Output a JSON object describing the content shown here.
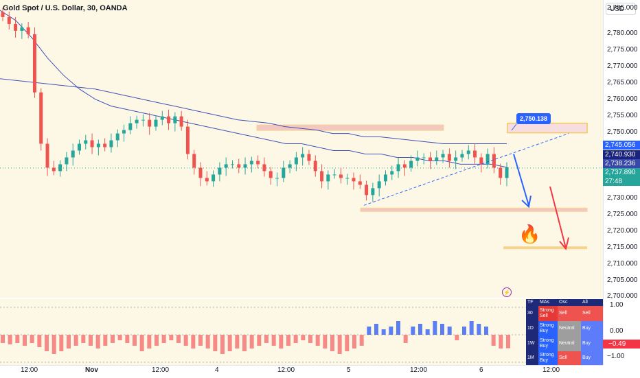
{
  "header": {
    "symbol_title": "Gold Spot / U.S. Dollar, 30, OANDA",
    "currency_button": "USD"
  },
  "price_axis": {
    "labels": [
      "2,785.000",
      "2,780.000",
      "2,775.000",
      "2,770.000",
      "2,765.000",
      "2,760.000",
      "2,755.000",
      "2,750.000",
      "2,745.056",
      "2,740.930",
      "2,738.236",
      "2,737.890",
      "27:48",
      "2,730.000",
      "2,725.000",
      "2,720.000",
      "2,715.000",
      "2,710.000",
      "2,705.000",
      "2,700.000"
    ],
    "tags": [
      {
        "text": "2,745.056",
        "color": "#2962ff"
      },
      {
        "text": "2,740.930",
        "color": "#1a237e"
      },
      {
        "text": "2,738.236",
        "color": "#3949ab"
      },
      {
        "text": "2,737.890",
        "color": "#26a69a"
      },
      {
        "text": "27:48",
        "color": "#26a69a"
      }
    ]
  },
  "time_axis": {
    "labels": [
      "12:00",
      "Nov",
      "12:00",
      "4",
      "12:00",
      "5",
      "12:00",
      "6",
      "12:00"
    ]
  },
  "annotations": {
    "callout_price": "2,750.138"
  },
  "indicator_axis": {
    "labels": [
      "1.00",
      "0.00",
      "−1.00"
    ],
    "current_value": "−0.49"
  },
  "tech_table": {
    "headers": [
      "TF",
      "MAs",
      "Osc",
      "All"
    ],
    "rows": [
      {
        "tf": "30",
        "mas": "Strong Sell",
        "osc": "Sell",
        "all": "Sell"
      },
      {
        "tf": "1D",
        "mas": "Strong Buy",
        "osc": "Neutral",
        "all": "Buy"
      },
      {
        "tf": "1W",
        "mas": "Strong Buy",
        "osc": "Neutral",
        "all": "Buy"
      },
      {
        "tf": "1M",
        "mas": "Strong Buy",
        "osc": "Sell",
        "all": "Buy"
      }
    ]
  },
  "chart_data": {
    "type": "candlestick",
    "symbol": "XAUUSD",
    "interval": "30",
    "ylim": [
      2700,
      2787
    ],
    "close_series": [
      2782,
      2780,
      2778,
      2779,
      2777,
      2760,
      2745,
      2738,
      2737,
      2739,
      2741,
      2743,
      2745,
      2746,
      2744,
      2745,
      2744,
      2746,
      2748,
      2749,
      2751,
      2752,
      2752,
      2750,
      2752,
      2753,
      2751,
      2753,
      2750,
      2742,
      2738,
      2735,
      2734,
      2736,
      2738,
      2739,
      2739,
      2738,
      2739,
      2740,
      2739,
      2737,
      2735,
      2735,
      2738,
      2739,
      2741,
      2742,
      2740,
      2737,
      2734,
      2736,
      2736,
      2735,
      2735,
      2734,
      2733,
      2730,
      2732,
      2734,
      2736,
      2737,
      2739,
      2738,
      2740,
      2741,
      2741,
      2740,
      2741,
      2742,
      2740,
      2741,
      2742,
      2743,
      2741,
      2739,
      2742,
      2738,
      2735,
      2738
    ],
    "series": [
      {
        "name": "MA short",
        "values": [
          2784,
          2781,
          2776,
          2770,
          2765,
          2761,
          2758,
          2756,
          2755,
          2754,
          2753,
          2752,
          2751,
          2750,
          2749,
          2748,
          2747,
          2746,
          2745,
          2745,
          2744,
          2743,
          2743,
          2742,
          2742,
          2741,
          2741,
          2740,
          2740,
          2739,
          2739,
          2739,
          2738
        ]
      },
      {
        "name": "MA long",
        "values": [
          2764,
          2763.5,
          2763,
          2762.5,
          2762,
          2761.5,
          2761,
          2760,
          2759,
          2758,
          2757,
          2756,
          2755,
          2754,
          2753,
          2752,
          2751.5,
          2751,
          2750,
          2749.5,
          2749,
          2748,
          2748,
          2747,
          2747,
          2746.5,
          2746,
          2745.5,
          2745,
          2745,
          2745,
          2745,
          2745
        ]
      }
    ],
    "levels": [
      {
        "price": 2749.5,
        "label": "resistance zone"
      },
      {
        "price": 2725.5,
        "label": "support zone"
      },
      {
        "price": 2714.5,
        "label": "target zone"
      }
    ],
    "trendline": {
      "from": 2727,
      "to": 2748
    },
    "histogram": [
      -0.3,
      -0.35,
      -0.3,
      -0.4,
      -0.3,
      -0.45,
      -0.6,
      -0.7,
      -0.6,
      -0.5,
      -0.4,
      -0.3,
      -0.4,
      -0.5,
      -0.4,
      -0.3,
      -0.2,
      -0.3,
      -0.4,
      -0.6,
      -0.5,
      -0.4,
      -0.3,
      -0.2,
      -0.3,
      -0.4,
      -0.5,
      -0.4,
      -0.5,
      -0.6,
      -0.7,
      -0.6,
      -0.5,
      -0.6,
      -0.5,
      -0.4,
      -0.3,
      -0.4,
      -0.5,
      -0.4,
      -0.3,
      -0.2,
      -0.3,
      -0.4,
      -0.5,
      -0.6,
      -0.7,
      -0.6,
      -0.5,
      -0.4,
      0.3,
      0.4,
      0.2,
      0.3,
      0.5,
      -0.3,
      0.3,
      0.4,
      0.2,
      0.5,
      0.4,
      0.3,
      -0.2,
      0.3,
      0.5,
      0.4,
      0.3,
      -0.4,
      -0.5,
      -0.49
    ],
    "colors": {
      "up": "#26a69a",
      "down": "#ef5350",
      "ma": "#3f51b5",
      "zone": "#f3c7c2",
      "arrow_blue": "#2962ff",
      "arrow_red": "#f23645"
    }
  }
}
